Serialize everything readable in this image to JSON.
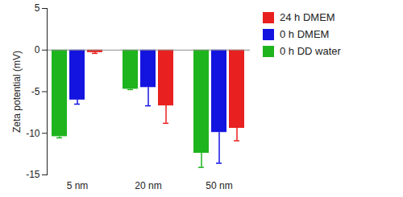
{
  "chart_data": {
    "type": "bar",
    "y_label": "Zeta potential (mV)",
    "categories": [
      "5 nm",
      "20 nm",
      "50 nm"
    ],
    "series": [
      {
        "name": "0 h DD water",
        "color": "#1eb41e",
        "values": [
          -10.4,
          -4.7,
          -12.4
        ],
        "errors": [
          0.15,
          0.05,
          1.7
        ]
      },
      {
        "name": "0 h DMEM",
        "color": "#1414e0",
        "values": [
          -6.0,
          -4.5,
          -9.9
        ],
        "errors": [
          0.5,
          2.2,
          3.7
        ]
      },
      {
        "name": "24 h DMEM",
        "color": "#e8201f",
        "values": [
          -0.3,
          -6.7,
          -9.4
        ],
        "errors": [
          0.1,
          2.1,
          1.5
        ]
      }
    ],
    "ylim": [
      -15,
      5
    ],
    "yticks": [
      -15,
      -10,
      -5,
      0,
      5
    ],
    "legend": "top-right"
  }
}
